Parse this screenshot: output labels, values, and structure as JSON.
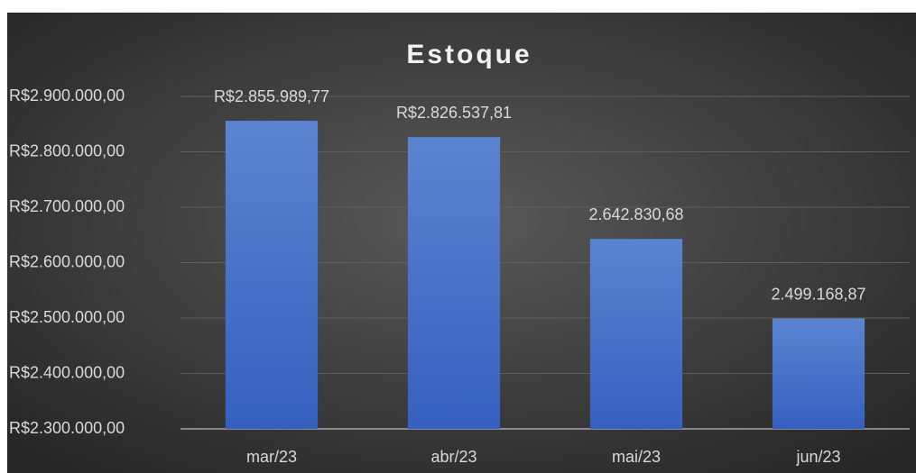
{
  "chart_data": {
    "type": "bar",
    "title": "Estoque",
    "categories": [
      "mar/23",
      "abr/23",
      "mai/23",
      "jun/23"
    ],
    "values": [
      2855989.77,
      2826537.81,
      2642830.68,
      2499168.87
    ],
    "value_labels": [
      "R$2.855.989,77",
      "R$2.826.537,81",
      "2.642.830,68",
      "2.499.168,87"
    ],
    "color": "#4472c4",
    "ylim": [
      2300000,
      2900000
    ],
    "yticks": [
      {
        "value": 2300000,
        "label": "R$2.300.000,00"
      },
      {
        "value": 2400000,
        "label": "R$2.400.000,00"
      },
      {
        "value": 2500000,
        "label": "R$2.500.000,00"
      },
      {
        "value": 2600000,
        "label": "R$2.600.000,00"
      },
      {
        "value": 2700000,
        "label": "R$2.700.000,00"
      },
      {
        "value": 2800000,
        "label": "R$2.800.000,00"
      },
      {
        "value": 2900000,
        "label": "R$2.900.000,00"
      }
    ],
    "grid": true
  }
}
